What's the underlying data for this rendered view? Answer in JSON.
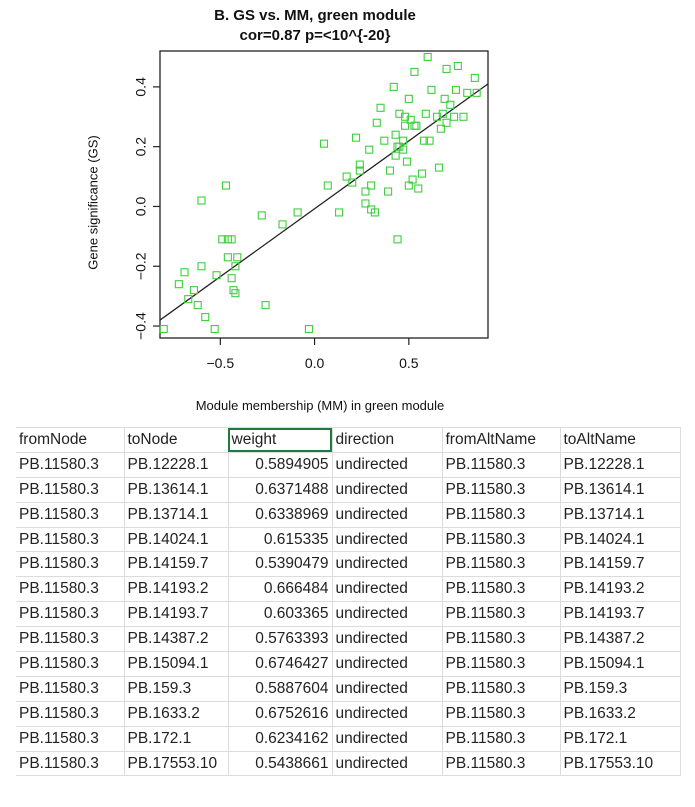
{
  "chart_data": {
    "type": "scatter",
    "title": "B. GS vs. MM, green module",
    "subtitle": "cor=0.87 p=<10^{-20}",
    "xlabel": "Module membership (MM) in green module",
    "ylabel": "Gene significance (GS)",
    "xlim": [
      -0.82,
      0.92
    ],
    "ylim": [
      -0.44,
      0.52
    ],
    "xticks": [
      -0.5,
      0.0,
      0.5
    ],
    "xtick_labels": [
      "−0.5",
      "0.0",
      "0.5"
    ],
    "yticks": [
      -0.4,
      -0.2,
      0.0,
      0.2,
      0.4
    ],
    "ytick_labels": [
      "−0.4",
      "−0.2",
      "0.0",
      "0.2",
      "0.4"
    ],
    "grid": false,
    "marker": "open-square",
    "point_color": "#3ecf3e",
    "line_color": "#222222",
    "fit_line": {
      "x": [
        -0.82,
        0.92
      ],
      "y": [
        -0.38,
        0.41
      ]
    },
    "points": [
      [
        -0.8,
        -0.41
      ],
      [
        -0.72,
        -0.26
      ],
      [
        -0.69,
        -0.22
      ],
      [
        -0.67,
        -0.31
      ],
      [
        -0.64,
        -0.28
      ],
      [
        -0.62,
        -0.33
      ],
      [
        -0.6,
        0.02
      ],
      [
        -0.6,
        -0.2
      ],
      [
        -0.58,
        -0.37
      ],
      [
        -0.53,
        -0.41
      ],
      [
        -0.52,
        -0.23
      ],
      [
        -0.49,
        -0.11
      ],
      [
        -0.47,
        0.07
      ],
      [
        -0.46,
        -0.11
      ],
      [
        -0.46,
        -0.17
      ],
      [
        -0.44,
        -0.24
      ],
      [
        -0.44,
        -0.11
      ],
      [
        -0.43,
        -0.28
      ],
      [
        -0.42,
        -0.2
      ],
      [
        -0.42,
        -0.29
      ],
      [
        -0.41,
        -0.17
      ],
      [
        -0.28,
        -0.03
      ],
      [
        -0.26,
        -0.33
      ],
      [
        -0.17,
        -0.06
      ],
      [
        -0.09,
        -0.02
      ],
      [
        -0.03,
        -0.41
      ],
      [
        0.05,
        0.21
      ],
      [
        0.07,
        0.07
      ],
      [
        0.13,
        -0.02
      ],
      [
        0.17,
        0.1
      ],
      [
        0.2,
        0.08
      ],
      [
        0.22,
        0.23
      ],
      [
        0.24,
        0.14
      ],
      [
        0.24,
        0.12
      ],
      [
        0.27,
        0.01
      ],
      [
        0.27,
        0.05
      ],
      [
        0.29,
        0.19
      ],
      [
        0.3,
        0.07
      ],
      [
        0.3,
        -0.01
      ],
      [
        0.32,
        -0.02
      ],
      [
        0.33,
        0.28
      ],
      [
        0.35,
        0.33
      ],
      [
        0.37,
        0.22
      ],
      [
        0.39,
        0.05
      ],
      [
        0.4,
        0.12
      ],
      [
        0.42,
        0.4
      ],
      [
        0.43,
        0.17
      ],
      [
        0.43,
        0.24
      ],
      [
        0.44,
        0.2
      ],
      [
        0.44,
        -0.11
      ],
      [
        0.45,
        0.31
      ],
      [
        0.45,
        0.2
      ],
      [
        0.47,
        0.22
      ],
      [
        0.47,
        0.19
      ],
      [
        0.48,
        0.27
      ],
      [
        0.48,
        0.3
      ],
      [
        0.49,
        0.15
      ],
      [
        0.5,
        0.07
      ],
      [
        0.5,
        0.36
      ],
      [
        0.51,
        0.29
      ],
      [
        0.52,
        0.09
      ],
      [
        0.53,
        0.27
      ],
      [
        0.53,
        0.45
      ],
      [
        0.54,
        0.27
      ],
      [
        0.55,
        0.06
      ],
      [
        0.57,
        0.11
      ],
      [
        0.58,
        0.22
      ],
      [
        0.59,
        0.31
      ],
      [
        0.6,
        0.5
      ],
      [
        0.61,
        0.22
      ],
      [
        0.62,
        0.39
      ],
      [
        0.65,
        0.3
      ],
      [
        0.66,
        0.13
      ],
      [
        0.67,
        0.26
      ],
      [
        0.68,
        0.31
      ],
      [
        0.69,
        0.36
      ],
      [
        0.7,
        0.28
      ],
      [
        0.7,
        0.46
      ],
      [
        0.72,
        0.34
      ],
      [
        0.74,
        0.3
      ],
      [
        0.75,
        0.39
      ],
      [
        0.76,
        0.47
      ],
      [
        0.79,
        0.3
      ],
      [
        0.81,
        0.38
      ],
      [
        0.85,
        0.43
      ],
      [
        0.86,
        0.38
      ]
    ]
  },
  "table": {
    "columns": [
      "fromNode",
      "toNode",
      "weight",
      "direction",
      "fromAltName",
      "toAltName"
    ],
    "rows": [
      [
        "PB.11580.3",
        "PB.12228.1",
        "0.5894905",
        "undirected",
        "PB.11580.3",
        "PB.12228.1"
      ],
      [
        "PB.11580.3",
        "PB.13614.1",
        "0.6371488",
        "undirected",
        "PB.11580.3",
        "PB.13614.1"
      ],
      [
        "PB.11580.3",
        "PB.13714.1",
        "0.6338969",
        "undirected",
        "PB.11580.3",
        "PB.13714.1"
      ],
      [
        "PB.11580.3",
        "PB.14024.1",
        "0.615335",
        "undirected",
        "PB.11580.3",
        "PB.14024.1"
      ],
      [
        "PB.11580.3",
        "PB.14159.7",
        "0.5390479",
        "undirected",
        "PB.11580.3",
        "PB.14159.7"
      ],
      [
        "PB.11580.3",
        "PB.14193.2",
        "0.666484",
        "undirected",
        "PB.11580.3",
        "PB.14193.2"
      ],
      [
        "PB.11580.3",
        "PB.14193.7",
        "0.603365",
        "undirected",
        "PB.11580.3",
        "PB.14193.7"
      ],
      [
        "PB.11580.3",
        "PB.14387.2",
        "0.5763393",
        "undirected",
        "PB.11580.3",
        "PB.14387.2"
      ],
      [
        "PB.11580.3",
        "PB.15094.1",
        "0.6746427",
        "undirected",
        "PB.11580.3",
        "PB.15094.1"
      ],
      [
        "PB.11580.3",
        "PB.159.3",
        "0.5887604",
        "undirected",
        "PB.11580.3",
        "PB.159.3"
      ],
      [
        "PB.11580.3",
        "PB.1633.2",
        "0.6752616",
        "undirected",
        "PB.11580.3",
        "PB.1633.2"
      ],
      [
        "PB.11580.3",
        "PB.172.1",
        "0.6234162",
        "undirected",
        "PB.11580.3",
        "PB.172.1"
      ],
      [
        "PB.11580.3",
        "PB.17553.10",
        "0.5438661",
        "undirected",
        "PB.11580.3",
        "PB.17553.10"
      ]
    ]
  }
}
